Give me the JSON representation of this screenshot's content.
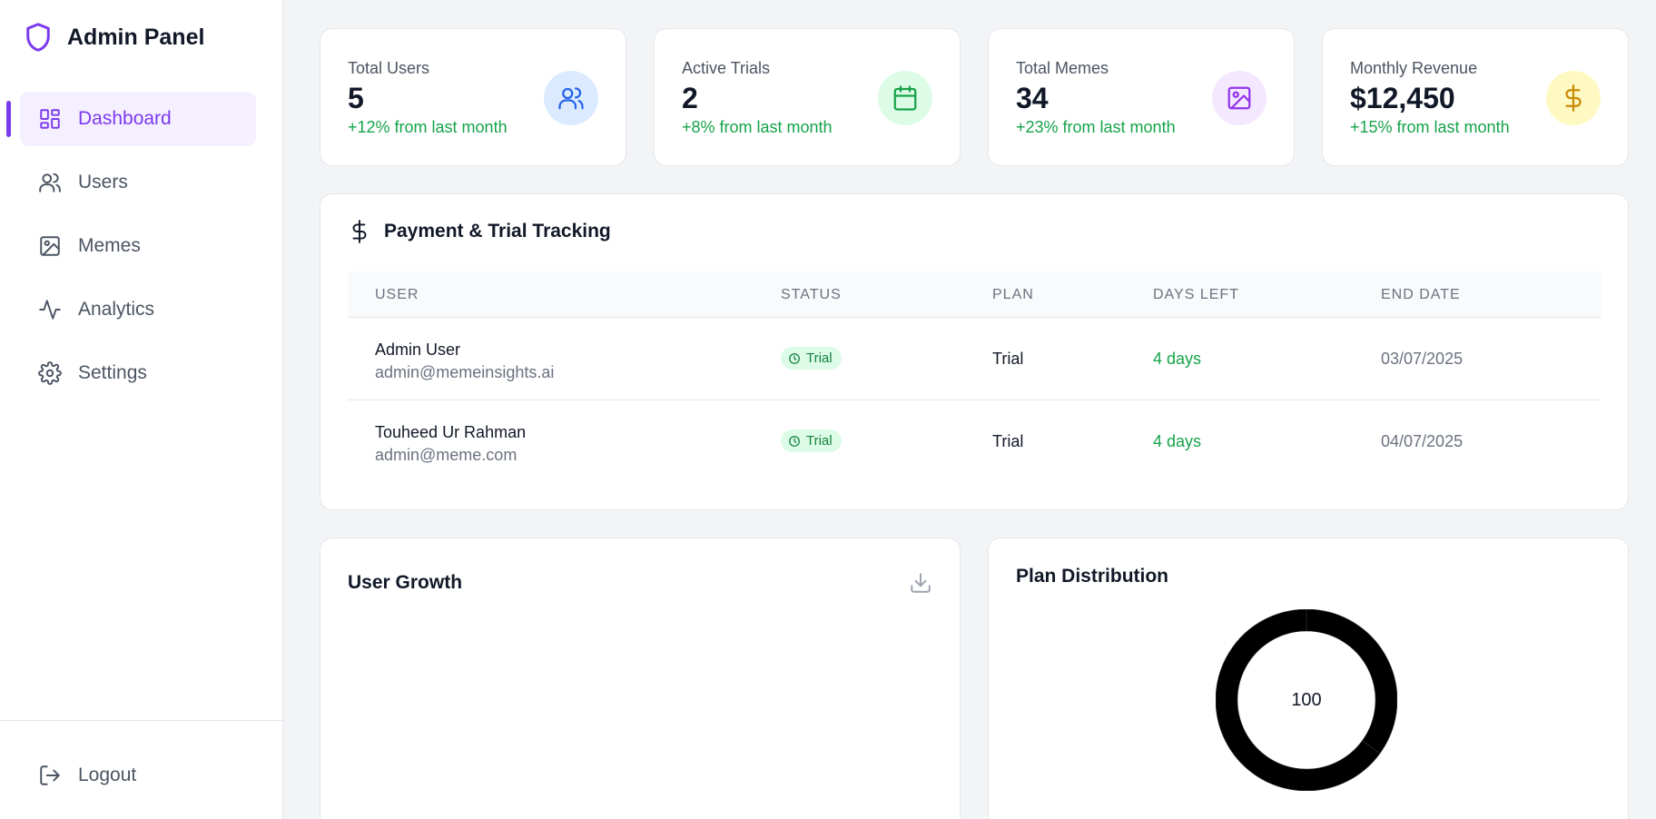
{
  "sidebar": {
    "title": "Admin Panel",
    "items": [
      {
        "label": "Dashboard",
        "icon": "dashboard-icon",
        "active": true
      },
      {
        "label": "Users",
        "icon": "users-icon"
      },
      {
        "label": "Memes",
        "icon": "image-icon"
      },
      {
        "label": "Analytics",
        "icon": "activity-icon"
      },
      {
        "label": "Settings",
        "icon": "gear-icon"
      }
    ],
    "logout": "Logout"
  },
  "stats": [
    {
      "label": "Total Users",
      "value": "5",
      "change": "+12% from last month",
      "icon": "users-icon",
      "icon_color": "#2563eb",
      "icon_bg": "#dbeafe"
    },
    {
      "label": "Active Trials",
      "value": "2",
      "change": "+8% from last month",
      "icon": "calendar-icon",
      "icon_color": "#16a34a",
      "icon_bg": "#dcfce7"
    },
    {
      "label": "Total Memes",
      "value": "34",
      "change": "+23% from last month",
      "icon": "image-icon",
      "icon_color": "#9333ea",
      "icon_bg": "#f3e8ff"
    },
    {
      "label": "Monthly Revenue",
      "value": "$12,450",
      "change": "+15% from last month",
      "icon": "dollar-icon",
      "icon_color": "#ca8a04",
      "icon_bg": "#fef9c3"
    }
  ],
  "payments": {
    "title": "Payment & Trial Tracking",
    "columns": [
      "USER",
      "STATUS",
      "PLAN",
      "DAYS LEFT",
      "END DATE"
    ],
    "rows": [
      {
        "name": "Admin User",
        "email": "admin@memeinsights.ai",
        "status": "Trial",
        "plan": "Trial",
        "days_left": "4 days",
        "end_date": "03/07/2025"
      },
      {
        "name": "Touheed Ur Rahman",
        "email": "admin@meme.com",
        "status": "Trial",
        "plan": "Trial",
        "days_left": "4 days",
        "end_date": "04/07/2025"
      }
    ]
  },
  "user_growth": {
    "title": "User Growth"
  },
  "plan_distribution": {
    "title": "Plan Distribution",
    "center_label": "100"
  },
  "chart_data": {
    "type": "pie",
    "title": "Plan Distribution",
    "slices": [
      {
        "value": 35
      },
      {
        "value": 65
      }
    ],
    "color": "#000000"
  }
}
